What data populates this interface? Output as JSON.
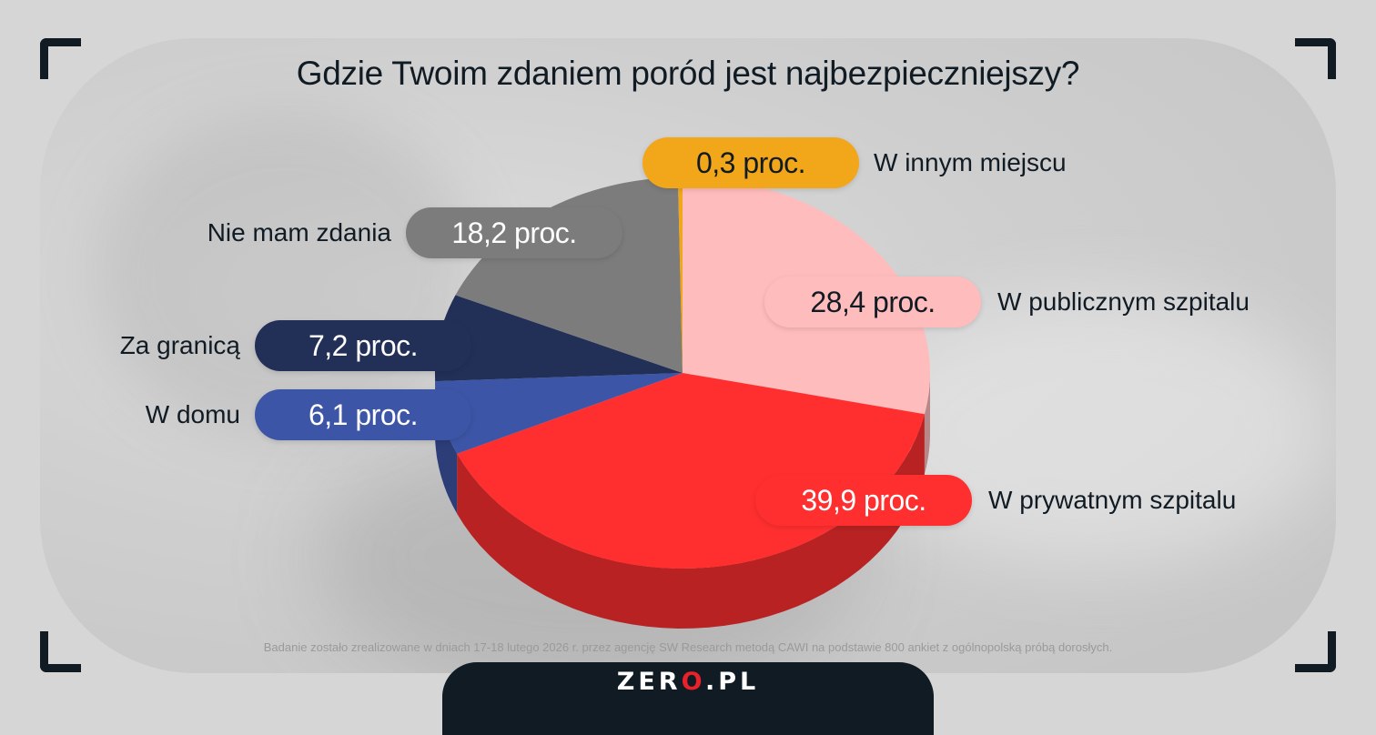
{
  "chart_data": {
    "type": "pie",
    "title": "Gdzie Twoim zdaniem poród jest najbezpieczniejszy?",
    "slices": [
      {
        "name": "W publicznym szpitalu",
        "value": 28.4,
        "label": "28,4 proc.",
        "color": "#ffbcbc",
        "text_color": "#111b24"
      },
      {
        "name": "W prywatnym szpitalu",
        "value": 39.9,
        "label": "39,9 proc.",
        "color": "#ff2f2f",
        "text_color": "#ffffff"
      },
      {
        "name": "W domu",
        "value": 6.1,
        "label": "6,1 proc.",
        "color": "#3d55a6",
        "text_color": "#ffffff"
      },
      {
        "name": "Za granicą",
        "value": 7.2,
        "label": "7,2 proc.",
        "color": "#223058",
        "text_color": "#ffffff"
      },
      {
        "name": "Nie mam zdania",
        "value": 18.2,
        "label": "18,2 proc.",
        "color": "#7c7c7c",
        "text_color": "#ffffff"
      },
      {
        "name": "W innym miejscu",
        "value": 0.3,
        "label": "0,3 proc.",
        "color": "#f2a61a",
        "text_color": "#111b24"
      }
    ]
  },
  "footnote": "Badanie zostało zrealizowane w dniach 17-18 lutego 2026 r. przez agencję SW Research metodą CAWI na podstawie 800 ankiet z ogólnopolską próbą dorosłych.",
  "brand": {
    "name_part1": "ZER",
    "dot": "O",
    "name_part2": ".PL"
  }
}
